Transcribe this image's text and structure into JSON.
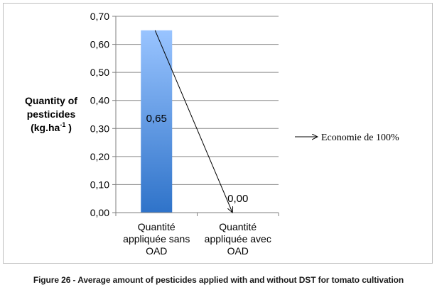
{
  "chart_data": {
    "type": "bar",
    "categories": [
      "Quantité appliquée sans OAD",
      "Quantité appliquée avec OAD"
    ],
    "category_lines": [
      [
        "Quantité",
        "appliquée sans",
        "OAD"
      ],
      [
        "Quantité",
        "appliquée avec",
        "OAD"
      ]
    ],
    "values": [
      0.65,
      0.0
    ],
    "value_labels": [
      "0,65",
      "0,00"
    ],
    "ylabel_lines": [
      "Quantity of",
      "pesticides",
      "(kg.ha",
      ")"
    ],
    "ylabel_superscript": "-1",
    "ylim": [
      0,
      0.7
    ],
    "yticks": [
      "0,00",
      "0,10",
      "0,20",
      "0,30",
      "0,40",
      "0,50",
      "0,60",
      "0,70"
    ],
    "grid": true,
    "annotation": "Economie de 100%",
    "bar_gradient": [
      "#99c4ff",
      "#2f73c9"
    ],
    "grid_color": "#8a8a8a"
  },
  "caption": "Figure 26 - Average amount of pesticides applied with and without DST for tomato cultivation"
}
